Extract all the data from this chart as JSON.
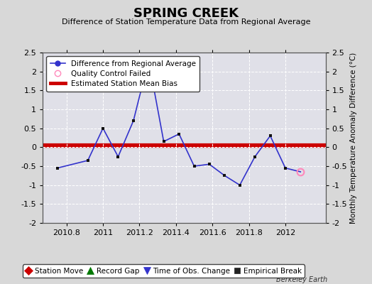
{
  "title": "SPRING CREEK",
  "subtitle": "Difference of Station Temperature Data from Regional Average",
  "ylabel": "Monthly Temperature Anomaly Difference (°C)",
  "footer": "Berkeley Earth",
  "xlim": [
    2010.67,
    2012.22
  ],
  "ylim": [
    -2.0,
    2.5
  ],
  "yticks": [
    -2.0,
    -1.5,
    -1.0,
    -0.5,
    0.0,
    0.5,
    1.0,
    1.5,
    2.0,
    2.5
  ],
  "ytick_labels": [
    "-2",
    "-1.5",
    "-1",
    "-0.5",
    "0",
    "0.5",
    "1",
    "1.5",
    "2",
    "2.5"
  ],
  "xticks": [
    2010.8,
    2011.0,
    2011.2,
    2011.4,
    2011.6,
    2011.8,
    2012.0
  ],
  "xticklabels": [
    "2010.8",
    "2011",
    "2011.2",
    "2011.4",
    "2011.6",
    "2011.8",
    "2012"
  ],
  "mean_bias": 0.05,
  "line_color": "#3333cc",
  "bias_color": "#cc0000",
  "marker_color": "#111111",
  "qc_fail_color": "#ff88bb",
  "bg_color": "#d8d8d8",
  "plot_bg_color": "#e0e0e8",
  "grid_color": "#ffffff",
  "x_data": [
    2010.75,
    2010.917,
    2011.0,
    2011.083,
    2011.167,
    2011.25,
    2011.333,
    2011.417,
    2011.5,
    2011.583,
    2011.667,
    2011.75,
    2011.833,
    2011.917,
    2012.0,
    2012.083
  ],
  "y_data": [
    -0.55,
    -0.35,
    0.5,
    -0.25,
    0.7,
    2.3,
    0.15,
    0.35,
    -0.5,
    -0.45,
    -0.75,
    -1.0,
    -0.25,
    0.3,
    -0.55,
    -0.65
  ],
  "qc_fail_indices": [
    15
  ],
  "legend_labels": [
    "Difference from Regional Average",
    "Quality Control Failed",
    "Estimated Station Mean Bias"
  ],
  "bottom_legend": [
    {
      "label": "Station Move",
      "color": "#cc0000",
      "marker": "D",
      "ms": 6
    },
    {
      "label": "Record Gap",
      "color": "#007700",
      "marker": "^",
      "ms": 7
    },
    {
      "label": "Time of Obs. Change",
      "color": "#3333cc",
      "marker": "v",
      "ms": 7
    },
    {
      "label": "Empirical Break",
      "color": "#222222",
      "marker": "s",
      "ms": 6
    }
  ]
}
